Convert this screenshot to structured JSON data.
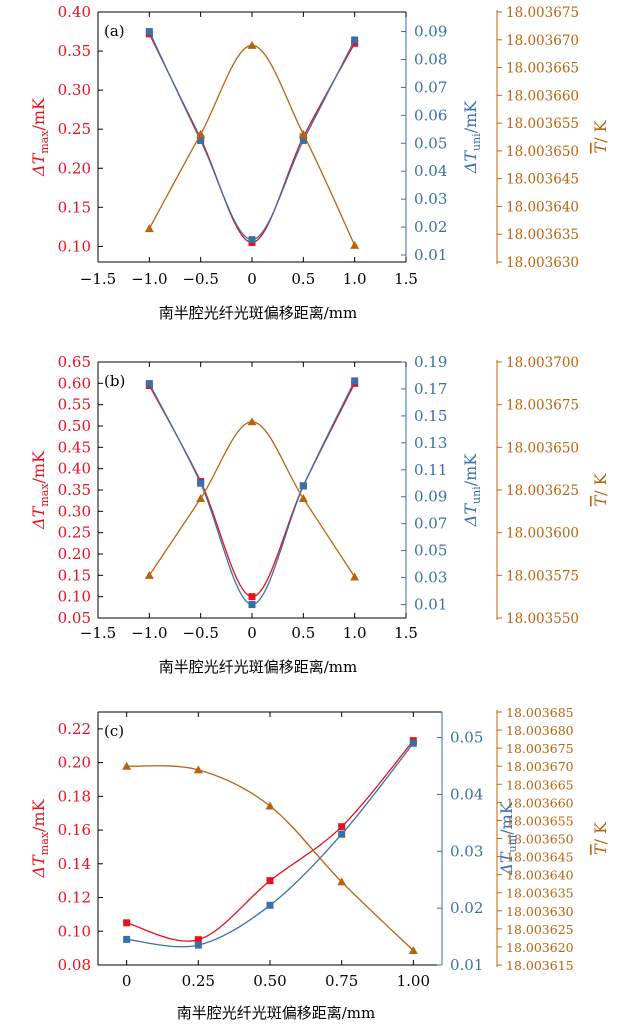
{
  "colors": {
    "red": "#e8101c",
    "blue": "#3a6fa8",
    "orange": "#b8640e",
    "axis": "#000000"
  },
  "chart_data": [
    {
      "type": "line",
      "panel_label": "(a)",
      "xlabel": "南半腔光纤光斑偏移距离/mm",
      "xlim": [
        -1.5,
        1.5
      ],
      "x_ticks": [
        "−1.5",
        "−1.0",
        "−0.5",
        "0",
        "0.5",
        "1.0",
        "1.5"
      ],
      "x": [
        -1.0,
        -0.5,
        0,
        0.5,
        1.0
      ],
      "axes": {
        "left": {
          "label_main": "ΔT",
          "label_sub": "max",
          "label_unit": "/mK",
          "lim": [
            0.08,
            0.4
          ],
          "ticks": [
            "0.10",
            "0.15",
            "0.20",
            "0.25",
            "0.30",
            "0.35",
            "0.40"
          ]
        },
        "right1": {
          "label_main": "ΔT",
          "label_sub": "uni",
          "label_unit": "/mK",
          "lim": [
            0.0075,
            0.097
          ],
          "ticks": [
            "0.01",
            "0.02",
            "0.03",
            "0.04",
            "0.05",
            "0.06",
            "0.07",
            "0.08",
            "0.09"
          ]
        },
        "right2": {
          "label_main": "T",
          "label_unit": "/ K",
          "lim": [
            18.00363,
            18.003675
          ],
          "ticks": [
            "18.003630",
            "18.003635",
            "18.003640",
            "18.003645",
            "18.003650",
            "18.003655",
            "18.003660",
            "18.003665",
            "18.003670",
            "18.003675"
          ]
        }
      },
      "series": [
        {
          "axis": "left",
          "marker": "square",
          "values": [
            0.372,
            0.238,
            0.105,
            0.24,
            0.36
          ]
        },
        {
          "axis": "right1",
          "marker": "square",
          "values": [
            0.09,
            0.051,
            0.0155,
            0.051,
            0.087
          ]
        },
        {
          "axis": "right2",
          "marker": "triangle",
          "values": [
            18.003636,
            18.003653,
            18.003669,
            18.003653,
            18.003633
          ]
        }
      ]
    },
    {
      "type": "line",
      "panel_label": "(b)",
      "xlabel": "南半腔光纤光斑偏移距离/mm",
      "xlim": [
        -1.5,
        1.5
      ],
      "x_ticks": [
        "−1.5",
        "−1.0",
        "−0.5",
        "0",
        "0.5",
        "1.0",
        "1.5"
      ],
      "x": [
        -1.0,
        -0.5,
        0,
        0.5,
        1.0
      ],
      "axes": {
        "left": {
          "label_main": "ΔT",
          "label_sub": "max",
          "label_unit": "/mK",
          "lim": [
            0.05,
            0.65
          ],
          "ticks": [
            "0.05",
            "0.10",
            "0.15",
            "0.20",
            "0.25",
            "0.30",
            "0.35",
            "0.40",
            "0.45",
            "0.50",
            "0.55",
            "0.60",
            "0.65"
          ]
        },
        "right1": {
          "label_main": "ΔT",
          "label_sub": "uni",
          "label_unit": "/mK",
          "lim": [
            0.0,
            0.19
          ],
          "ticks": [
            "0.01",
            "0.03",
            "0.05",
            "0.07",
            "0.09",
            "0.11",
            "0.13",
            "0.15",
            "0.17",
            "0.19"
          ]
        },
        "right2": {
          "label_main": "T",
          "label_unit": "/ K",
          "lim": [
            18.00355,
            18.0037
          ],
          "ticks": [
            "18.003550",
            "18.003575",
            "18.003600",
            "18.003625",
            "18.003650",
            "18.003675",
            "18.003700"
          ]
        }
      },
      "series": [
        {
          "axis": "left",
          "marker": "square",
          "values": [
            0.595,
            0.37,
            0.1,
            0.36,
            0.6
          ]
        },
        {
          "axis": "right1",
          "marker": "square",
          "values": [
            0.174,
            0.1,
            0.01,
            0.098,
            0.176
          ]
        },
        {
          "axis": "right2",
          "marker": "triangle",
          "values": [
            18.003575,
            18.00362,
            18.003665,
            18.00362,
            18.003574
          ]
        }
      ]
    },
    {
      "type": "line",
      "panel_label": "(c)",
      "xlabel": "南半腔光纤光斑偏移距离/mm",
      "xlim": [
        -0.1,
        1.1
      ],
      "x_ticks": [
        "0",
        "0.25",
        "0.50",
        "0.75",
        "1.00"
      ],
      "x_tick_values": [
        0,
        0.25,
        0.5,
        0.75,
        1.0
      ],
      "x": [
        0,
        0.25,
        0.5,
        0.75,
        1.0
      ],
      "axes": {
        "left": {
          "label_main": "ΔT",
          "label_sub": "max",
          "label_unit": "/mK",
          "lim": [
            0.08,
            0.23
          ],
          "ticks": [
            "0.08",
            "0.10",
            "0.12",
            "0.14",
            "0.16",
            "0.18",
            "0.20",
            "0.22"
          ]
        },
        "right1": {
          "label_main": "ΔT",
          "label_sub": "uni",
          "label_unit": "/mK",
          "lim": [
            0.01,
            0.0545
          ],
          "ticks": [
            "0.01",
            "0.02",
            "0.03",
            "0.04",
            "0.05"
          ]
        },
        "right2": {
          "label_main": "T",
          "label_unit": "/ K",
          "lim": [
            18.003615,
            18.003685
          ],
          "ticks": [
            "18.003615",
            "18.003620",
            "18.003625",
            "18.003630",
            "18.003635",
            "18.003640",
            "18.003645",
            "18.003650",
            "18.003655",
            "18.003660",
            "18.003665",
            "18.003670",
            "18.003675",
            "18.003680",
            "18.003685"
          ]
        }
      },
      "series": [
        {
          "axis": "left",
          "marker": "square",
          "values": [
            0.105,
            0.095,
            0.13,
            0.162,
            0.213
          ]
        },
        {
          "axis": "right1",
          "marker": "square",
          "values": [
            0.0145,
            0.0135,
            0.0205,
            0.033,
            0.049
          ]
        },
        {
          "axis": "right2",
          "marker": "triangle",
          "values": [
            18.00367,
            18.003669,
            18.003659,
            18.003638,
            18.003619
          ]
        }
      ]
    }
  ]
}
